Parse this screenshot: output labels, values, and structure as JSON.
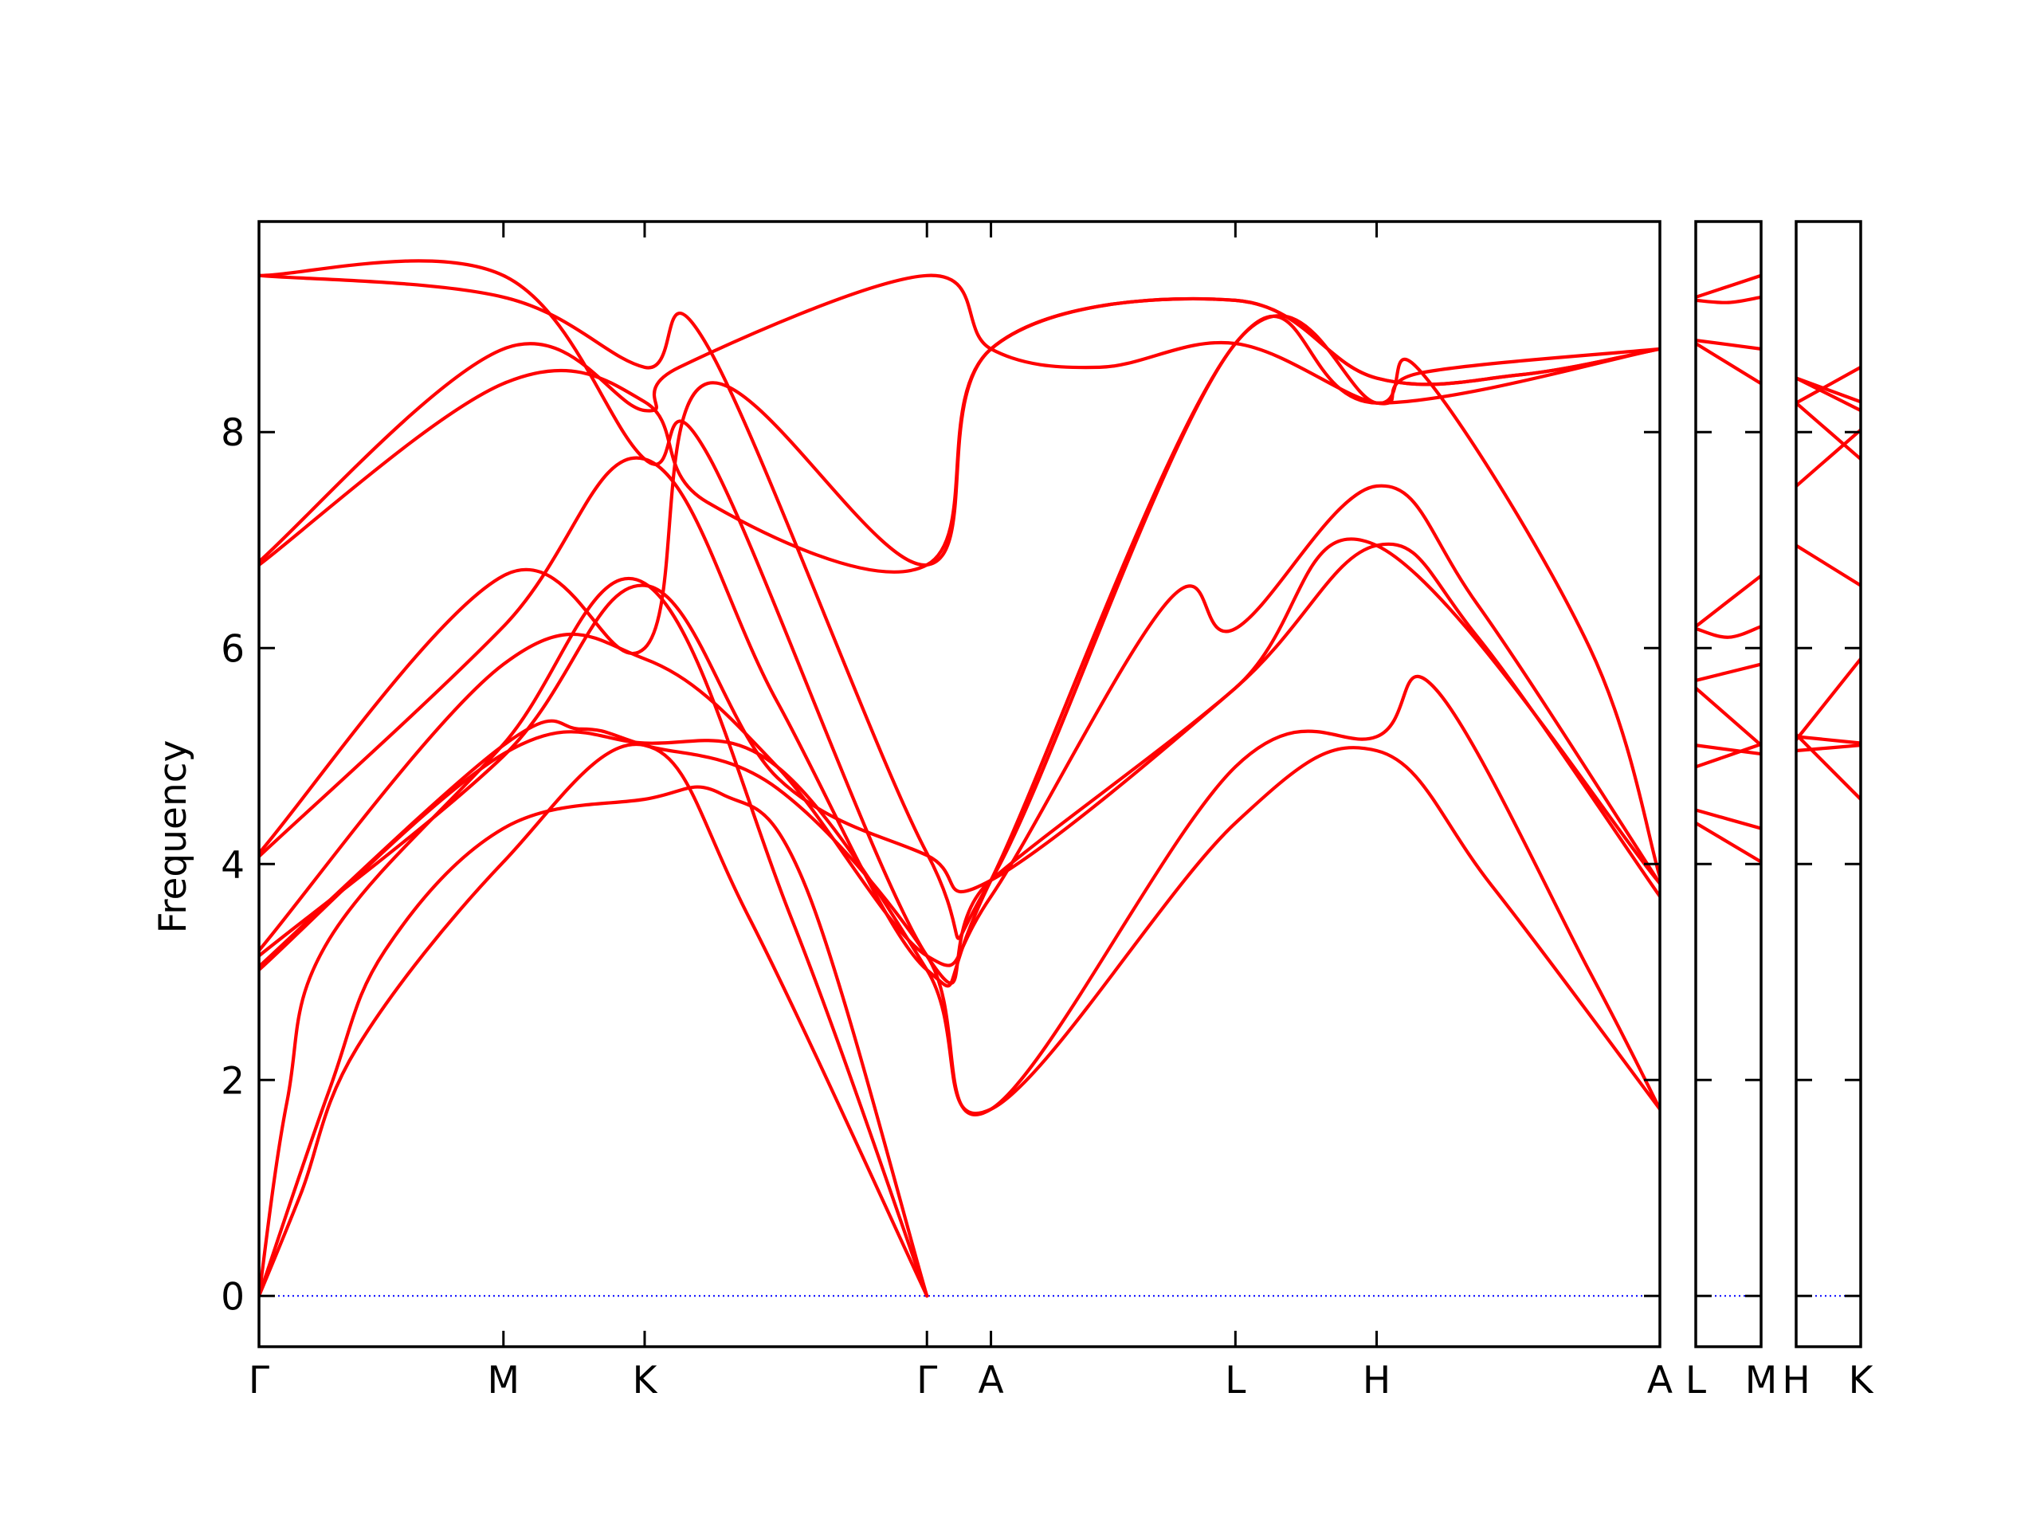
{
  "chart_data": {
    "type": "line",
    "ylabel": "Frequency",
    "ylim": [
      -0.47,
      9.95
    ],
    "yticks": [
      "0",
      "2",
      "4",
      "6",
      "8"
    ],
    "colors": {
      "bands": "#ff0000",
      "zero_line": "#0000ff",
      "frame": "#000000"
    },
    "zero_line_style": "dotted",
    "panels": [
      {
        "labels": [
          "Γ",
          "M",
          "K",
          "Γ",
          "A",
          "L",
          "H",
          "A"
        ],
        "x": [
          0,
          0.1745,
          0.2753,
          0.4768,
          0.5225,
          0.697,
          0.7978,
          1.0
        ],
        "bands": [
          [
            [
              0,
              0
            ],
            [
              0.03,
              0.95
            ],
            [
              0.07,
              2.3
            ],
            [
              0.1745,
              4.02
            ],
            [
              0.2753,
              5.1
            ],
            [
              0.35,
              3.5
            ],
            [
              0.4768,
              0
            ]
          ],
          [
            [
              0,
              0
            ],
            [
              0.05,
              1.9
            ],
            [
              0.09,
              3.2
            ],
            [
              0.1745,
              4.33
            ],
            [
              0.2753,
              4.6
            ],
            [
              0.33,
              4.65
            ],
            [
              0.39,
              3.8
            ],
            [
              0.4768,
              0
            ]
          ],
          [
            [
              0,
              0
            ],
            [
              0.02,
              1.8
            ],
            [
              0.05,
              3.3
            ],
            [
              0.1745,
              5.11
            ],
            [
              0.2753,
              6.6
            ],
            [
              0.38,
              3.5
            ],
            [
              0.4768,
              0
            ]
          ],
          [
            [
              0,
              3.02
            ],
            [
              0.1745,
              5.02
            ],
            [
              0.2753,
              5.12
            ],
            [
              0.37,
              4.9
            ],
            [
              0.4768,
              3.02
            ],
            [
              0.5225,
              1.73
            ],
            [
              0.697,
              4.38
            ],
            [
              0.7978,
              5.05
            ],
            [
              0.88,
              3.8
            ],
            [
              1.0,
              1.73
            ]
          ],
          [
            [
              0,
              3.05
            ],
            [
              0.1745,
              5.1
            ],
            [
              0.23,
              5.25
            ],
            [
              0.2753,
              5.1
            ],
            [
              0.37,
              4.7
            ],
            [
              0.4768,
              3.15
            ],
            [
              0.5225,
              1.73
            ],
            [
              0.697,
              4.9
            ],
            [
              0.7978,
              5.18
            ],
            [
              0.84,
              5.62
            ],
            [
              0.95,
              3.0
            ],
            [
              1.0,
              1.73
            ]
          ],
          [
            [
              0,
              3.15
            ],
            [
              0.1745,
              5.0
            ],
            [
              0.2753,
              6.58
            ],
            [
              0.37,
              4.8
            ],
            [
              0.4768,
              4.08
            ],
            [
              0.5225,
              3.85
            ],
            [
              0.697,
              5.63
            ],
            [
              0.7978,
              6.95
            ],
            [
              0.87,
              6.1
            ],
            [
              1.0,
              3.7
            ]
          ],
          [
            [
              0,
              3.2
            ],
            [
              0.1745,
              5.85
            ],
            [
              0.2753,
              5.9
            ],
            [
              0.37,
              4.9
            ],
            [
              0.4768,
              3.15
            ],
            [
              0.5225,
              3.7
            ],
            [
              0.65,
              6.45
            ],
            [
              0.697,
              6.18
            ],
            [
              0.7978,
              7.5
            ],
            [
              0.87,
              6.4
            ],
            [
              1.0,
              3.82
            ]
          ],
          [
            [
              0,
              4.07
            ],
            [
              0.1745,
              6.2
            ],
            [
              0.2753,
              7.75
            ],
            [
              0.37,
              5.5
            ],
            [
              0.4768,
              3.02
            ],
            [
              0.5225,
              3.85
            ],
            [
              0.697,
              8.82
            ],
            [
              0.7978,
              8.27
            ],
            [
              0.83,
              8.55
            ],
            [
              0.95,
              6.0
            ],
            [
              1.0,
              3.88
            ]
          ],
          [
            [
              0,
              4.1
            ],
            [
              0.1745,
              6.67
            ],
            [
              0.2753,
              6.0
            ],
            [
              0.32,
              8.45
            ],
            [
              0.4768,
              6.77
            ],
            [
              0.5225,
              8.77
            ],
            [
              0.697,
              9.22
            ],
            [
              0.7978,
              8.5
            ],
            [
              0.9,
              8.53
            ],
            [
              1.0,
              8.77
            ]
          ],
          [
            [
              0,
              6.77
            ],
            [
              0.1745,
              8.45
            ],
            [
              0.2753,
              8.28
            ],
            [
              0.32,
              7.35
            ],
            [
              0.4768,
              6.77
            ],
            [
              0.5225,
              8.77
            ],
            [
              0.697,
              9.22
            ],
            [
              0.7978,
              8.5
            ],
            [
              0.9,
              8.53
            ],
            [
              1.0,
              8.77
            ]
          ],
          [
            [
              0,
              6.8
            ],
            [
              0.1745,
              8.77
            ],
            [
              0.2753,
              8.2
            ],
            [
              0.3,
              8.6
            ],
            [
              0.4768,
              9.45
            ],
            [
              0.5225,
              8.77
            ],
            [
              0.6,
              8.6
            ],
            [
              0.697,
              8.82
            ],
            [
              0.7978,
              8.27
            ],
            [
              0.83,
              8.55
            ],
            [
              1.0,
              8.77
            ]
          ],
          [
            [
              0,
              9.45
            ],
            [
              0.1745,
              9.25
            ],
            [
              0.2753,
              8.6
            ],
            [
              0.32,
              8.8
            ],
            [
              0.4768,
              4.1
            ],
            [
              0.5225,
              3.85
            ],
            [
              0.697,
              8.82
            ],
            [
              0.7978,
              8.27
            ],
            [
              1.0,
              8.77
            ]
          ],
          [
            [
              0,
              9.45
            ],
            [
              0.1745,
              9.45
            ],
            [
              0.2753,
              7.75
            ],
            [
              0.32,
              7.8
            ],
            [
              0.4768,
              3.15
            ],
            [
              0.5225,
              3.85
            ],
            [
              0.697,
              5.63
            ],
            [
              0.7978,
              6.95
            ],
            [
              1.0,
              3.82
            ]
          ]
        ]
      },
      {
        "labels": [
          "L",
          "M"
        ],
        "x": [
          0,
          1
        ],
        "bands": [
          [
            [
              0,
              4.38
            ],
            [
              1,
              4.02
            ]
          ],
          [
            [
              0,
              4.5
            ],
            [
              1,
              4.33
            ]
          ],
          [
            [
              0,
              4.9
            ],
            [
              1,
              5.11
            ]
          ],
          [
            [
              0,
              5.1
            ],
            [
              1,
              5.02
            ]
          ],
          [
            [
              0,
              5.63
            ],
            [
              1,
              5.1
            ]
          ],
          [
            [
              0,
              5.7
            ],
            [
              1,
              5.85
            ]
          ],
          [
            [
              0,
              6.18
            ],
            [
              0.5,
              6.1
            ],
            [
              1,
              6.2
            ]
          ],
          [
            [
              0,
              6.2
            ],
            [
              1,
              6.67
            ]
          ],
          [
            [
              0,
              8.82
            ],
            [
              1,
              8.45
            ]
          ],
          [
            [
              0,
              8.85
            ],
            [
              1,
              8.77
            ]
          ],
          [
            [
              0,
              9.22
            ],
            [
              0.5,
              9.2
            ],
            [
              1,
              9.25
            ]
          ],
          [
            [
              0,
              9.25
            ],
            [
              1,
              9.45
            ]
          ]
        ]
      },
      {
        "labels": [
          "H",
          "K"
        ],
        "x": [
          0,
          1
        ],
        "bands": [
          [
            [
              0,
              5.05
            ],
            [
              1,
              5.1
            ]
          ],
          [
            [
              0,
              5.18
            ],
            [
              1,
              5.12
            ]
          ],
          [
            [
              0,
              5.15
            ],
            [
              1,
              5.9
            ]
          ],
          [
            [
              0,
              5.2
            ],
            [
              1,
              4.6
            ]
          ],
          [
            [
              0,
              6.95
            ],
            [
              1,
              6.58
            ]
          ],
          [
            [
              0,
              7.5
            ],
            [
              1,
              8.02
            ]
          ],
          [
            [
              0,
              8.27
            ],
            [
              1,
              7.75
            ]
          ],
          [
            [
              0,
              8.27
            ],
            [
              1,
              8.6
            ]
          ],
          [
            [
              0,
              8.5
            ],
            [
              1,
              8.2
            ]
          ],
          [
            [
              0,
              8.5
            ],
            [
              1,
              8.28
            ]
          ]
        ]
      }
    ]
  }
}
